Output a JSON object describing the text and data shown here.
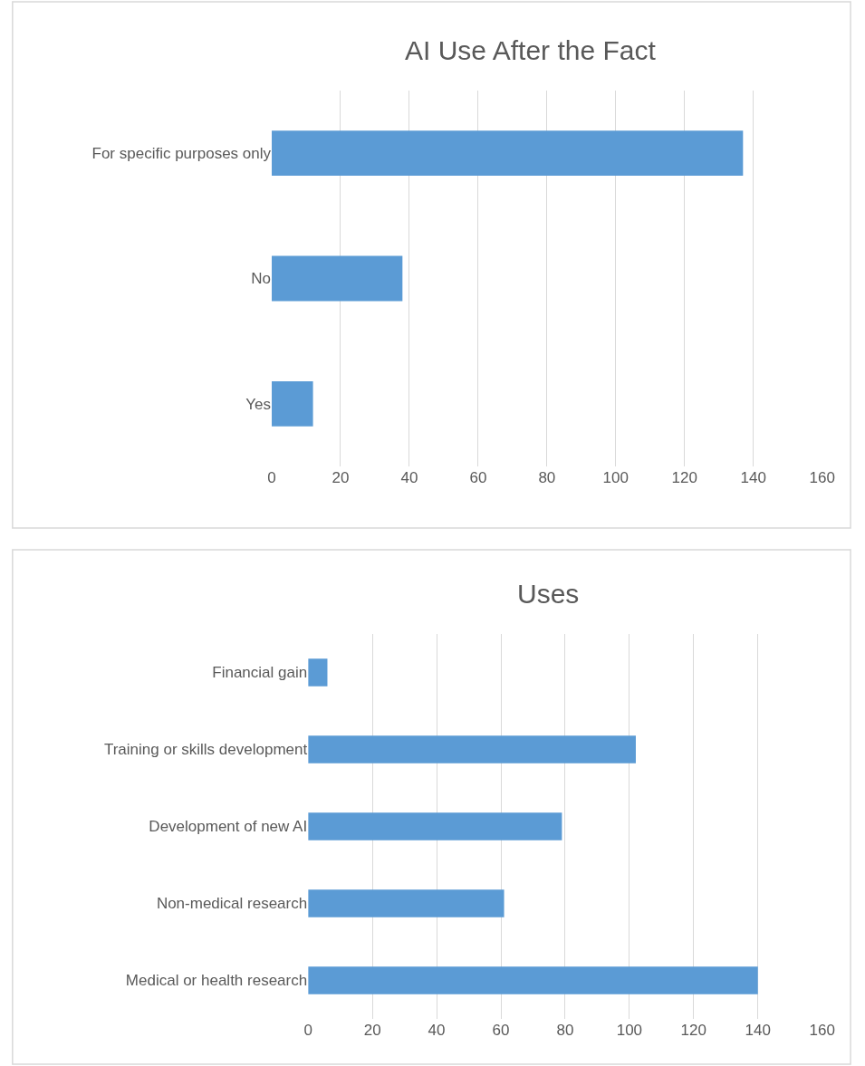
{
  "chart_data": [
    {
      "type": "bar",
      "orientation": "horizontal",
      "title": "AI Use After the Fact",
      "categories": [
        "For specific purposes only",
        "No",
        "Yes"
      ],
      "values": [
        137,
        38,
        12
      ],
      "color": "#5b9bd5",
      "xlim": [
        0,
        160
      ],
      "xticks": [
        0,
        20,
        40,
        60,
        80,
        100,
        120,
        140,
        160
      ],
      "grid": "x",
      "legend": false
    },
    {
      "type": "bar",
      "orientation": "horizontal",
      "title": "Uses",
      "categories": [
        "Financial gain",
        "Training or skills development",
        "Development of new AI",
        "Non-medical research",
        "Medical or health research"
      ],
      "values": [
        6,
        102,
        79,
        61,
        140
      ],
      "color": "#5b9bd5",
      "xlim": [
        0,
        160
      ],
      "xticks": [
        0,
        20,
        40,
        60,
        80,
        100,
        120,
        140,
        160
      ],
      "grid": "x",
      "legend": false
    }
  ]
}
